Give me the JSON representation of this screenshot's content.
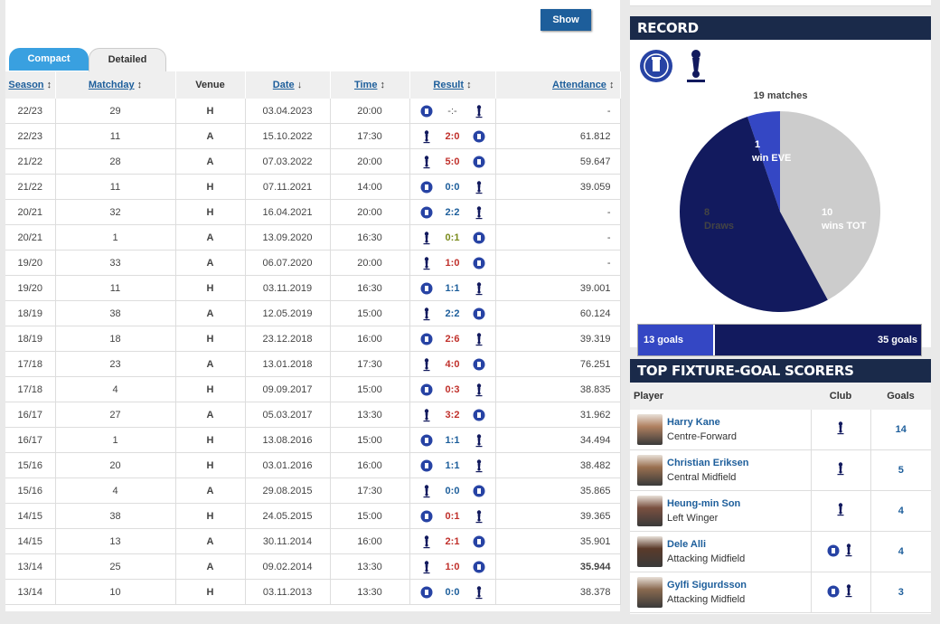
{
  "show_label": "Show",
  "tabs": {
    "compact": "Compact",
    "detailed": "Detailed"
  },
  "table_headers": {
    "season": "Season",
    "matchday": "Matchday",
    "venue": "Venue",
    "date": "Date",
    "time": "Time",
    "result": "Result",
    "attendance": "Attendance"
  },
  "header_icons": {
    "season": "sort-icon",
    "matchday": "sort-icon",
    "date": "sort-down-icon",
    "time": "sort-icon",
    "result": "sort-icon",
    "attendance": "sort-icon"
  },
  "matches": [
    {
      "season": "22/23",
      "matchday": "29",
      "venue": "H",
      "date": "03.04.2023",
      "time": "20:00",
      "home": "everton",
      "away": "tottenham",
      "score": "-:-",
      "score_color": "gray",
      "attendance": "-"
    },
    {
      "season": "22/23",
      "matchday": "11",
      "venue": "A",
      "date": "15.10.2022",
      "time": "17:30",
      "home": "tottenham",
      "away": "everton",
      "score": "2:0",
      "score_color": "red",
      "attendance": "61.812"
    },
    {
      "season": "21/22",
      "matchday": "28",
      "venue": "A",
      "date": "07.03.2022",
      "time": "20:00",
      "home": "tottenham",
      "away": "everton",
      "score": "5:0",
      "score_color": "red",
      "attendance": "59.647"
    },
    {
      "season": "21/22",
      "matchday": "11",
      "venue": "H",
      "date": "07.11.2021",
      "time": "14:00",
      "home": "everton",
      "away": "tottenham",
      "score": "0:0",
      "score_color": "blue",
      "attendance": "39.059"
    },
    {
      "season": "20/21",
      "matchday": "32",
      "venue": "H",
      "date": "16.04.2021",
      "time": "20:00",
      "home": "everton",
      "away": "tottenham",
      "score": "2:2",
      "score_color": "blue",
      "attendance": "-"
    },
    {
      "season": "20/21",
      "matchday": "1",
      "venue": "A",
      "date": "13.09.2020",
      "time": "16:30",
      "home": "tottenham",
      "away": "everton",
      "score": "0:1",
      "score_color": "olive",
      "attendance": "-"
    },
    {
      "season": "19/20",
      "matchday": "33",
      "venue": "A",
      "date": "06.07.2020",
      "time": "20:00",
      "home": "tottenham",
      "away": "everton",
      "score": "1:0",
      "score_color": "red",
      "attendance": "-"
    },
    {
      "season": "19/20",
      "matchday": "11",
      "venue": "H",
      "date": "03.11.2019",
      "time": "16:30",
      "home": "everton",
      "away": "tottenham",
      "score": "1:1",
      "score_color": "blue",
      "attendance": "39.001"
    },
    {
      "season": "18/19",
      "matchday": "38",
      "venue": "A",
      "date": "12.05.2019",
      "time": "15:00",
      "home": "tottenham",
      "away": "everton",
      "score": "2:2",
      "score_color": "blue",
      "attendance": "60.124"
    },
    {
      "season": "18/19",
      "matchday": "18",
      "venue": "H",
      "date": "23.12.2018",
      "time": "16:00",
      "home": "everton",
      "away": "tottenham",
      "score": "2:6",
      "score_color": "red",
      "attendance": "39.319"
    },
    {
      "season": "17/18",
      "matchday": "23",
      "venue": "A",
      "date": "13.01.2018",
      "time": "17:30",
      "home": "tottenham",
      "away": "everton",
      "score": "4:0",
      "score_color": "red",
      "attendance": "76.251"
    },
    {
      "season": "17/18",
      "matchday": "4",
      "venue": "H",
      "date": "09.09.2017",
      "time": "15:00",
      "home": "everton",
      "away": "tottenham",
      "score": "0:3",
      "score_color": "red",
      "attendance": "38.835"
    },
    {
      "season": "16/17",
      "matchday": "27",
      "venue": "A",
      "date": "05.03.2017",
      "time": "13:30",
      "home": "tottenham",
      "away": "everton",
      "score": "3:2",
      "score_color": "red",
      "attendance": "31.962"
    },
    {
      "season": "16/17",
      "matchday": "1",
      "venue": "H",
      "date": "13.08.2016",
      "time": "15:00",
      "home": "everton",
      "away": "tottenham",
      "score": "1:1",
      "score_color": "blue",
      "attendance": "34.494"
    },
    {
      "season": "15/16",
      "matchday": "20",
      "venue": "H",
      "date": "03.01.2016",
      "time": "16:00",
      "home": "everton",
      "away": "tottenham",
      "score": "1:1",
      "score_color": "blue",
      "attendance": "38.482"
    },
    {
      "season": "15/16",
      "matchday": "4",
      "venue": "A",
      "date": "29.08.2015",
      "time": "17:30",
      "home": "tottenham",
      "away": "everton",
      "score": "0:0",
      "score_color": "blue",
      "attendance": "35.865"
    },
    {
      "season": "14/15",
      "matchday": "38",
      "venue": "H",
      "date": "24.05.2015",
      "time": "15:00",
      "home": "everton",
      "away": "tottenham",
      "score": "0:1",
      "score_color": "red",
      "attendance": "39.365"
    },
    {
      "season": "14/15",
      "matchday": "13",
      "venue": "A",
      "date": "30.11.2014",
      "time": "16:00",
      "home": "tottenham",
      "away": "everton",
      "score": "2:1",
      "score_color": "red",
      "attendance": "35.901"
    },
    {
      "season": "13/14",
      "matchday": "25",
      "venue": "A",
      "date": "09.02.2014",
      "time": "13:30",
      "home": "tottenham",
      "away": "everton",
      "score": "1:0",
      "score_color": "red",
      "attendance": "35.944",
      "att_bold": true
    },
    {
      "season": "13/14",
      "matchday": "10",
      "venue": "H",
      "date": "03.11.2013",
      "time": "13:30",
      "home": "everton",
      "away": "tottenham",
      "score": "0:0",
      "score_color": "blue",
      "attendance": "38.378"
    }
  ],
  "record": {
    "title": "RECORD",
    "matches_label": "19 matches",
    "goals_left": "13 goals",
    "goals_right": "35 goals",
    "labels": {
      "eve_count": "1",
      "eve_text": "win EVE",
      "draws_count": "8",
      "draws_text": "Draws",
      "tot_count": "10",
      "tot_text": "wins TOT"
    }
  },
  "chart_data": {
    "type": "pie",
    "categories": [
      "win EVE",
      "Draws",
      "wins TOT"
    ],
    "values": [
      1,
      8,
      10
    ],
    "colors": [
      "#3447c4",
      "#cccccc",
      "#121a5e"
    ],
    "title": "19 matches",
    "goals": [
      13,
      35
    ]
  },
  "scorers": {
    "title": "TOP FIXTURE-GOAL SCORERS",
    "headers": {
      "player": "Player",
      "club": "Club",
      "goals": "Goals"
    },
    "rows": [
      {
        "name": "Harry Kane",
        "position": "Centre-Forward",
        "goals": "14",
        "clubs": [
          "tottenham"
        ]
      },
      {
        "name": "Christian Eriksen",
        "position": "Central Midfield",
        "goals": "5",
        "clubs": [
          "tottenham"
        ]
      },
      {
        "name": "Heung-min Son",
        "position": "Left Winger",
        "goals": "4",
        "clubs": [
          "tottenham"
        ]
      },
      {
        "name": "Dele Alli",
        "position": "Attacking Midfield",
        "goals": "4",
        "clubs": [
          "everton",
          "tottenham"
        ]
      },
      {
        "name": "Gylfi Sigurdsson",
        "position": "Attacking Midfield",
        "goals": "3",
        "clubs": [
          "everton",
          "tottenham"
        ]
      }
    ]
  },
  "colors": {
    "accent": "#1d5e9b",
    "tab_active": "#39a0e0",
    "dark_title": "#1a2a4a",
    "tot_navy": "#121a5e",
    "eve_blue": "#3447c4"
  }
}
